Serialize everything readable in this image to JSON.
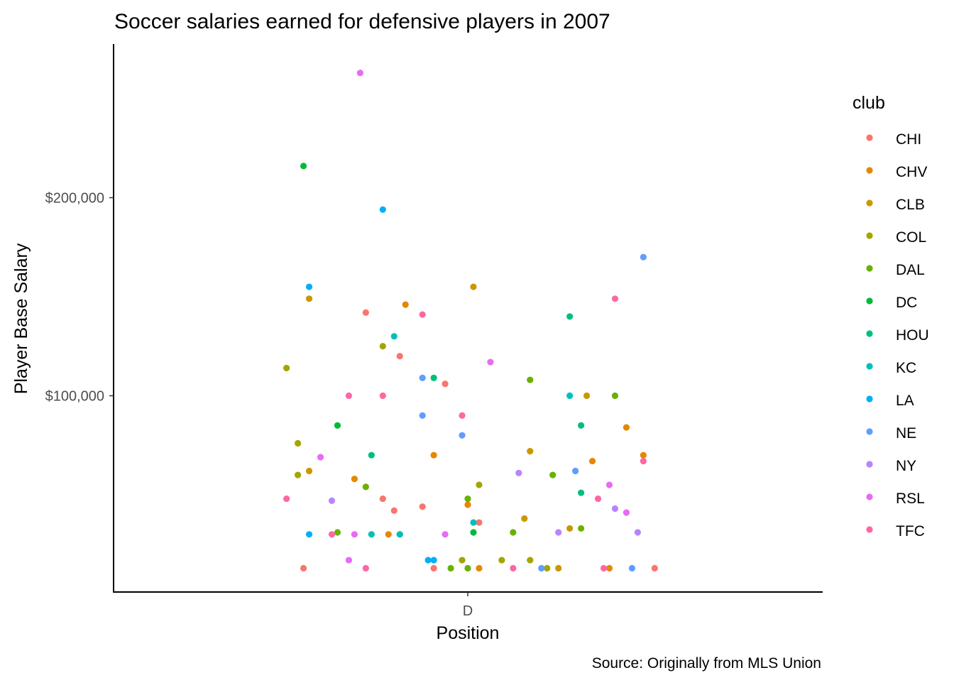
{
  "chart_data": {
    "type": "scatter",
    "title": "Soccer salaries earned for defensive players in 2007",
    "caption": "Source: Originally from MLS Union",
    "xlabel": "Position",
    "ylabel": "Player Base Salary",
    "x_categories": [
      "D"
    ],
    "y_ticks": [
      {
        "value": 100000,
        "label": "$100,000"
      },
      {
        "value": 200000,
        "label": "$200,000"
      }
    ],
    "ylim": [
      -10000,
      265000
    ],
    "jitter_range": [
      -0.5,
      0.5
    ],
    "grid": false,
    "legend": {
      "title": "club",
      "position": "right"
    },
    "series": [
      {
        "name": "CHI",
        "color": "#F8766D",
        "points": [
          {
            "x": "D",
            "j": -0.29,
            "y": 12900
          },
          {
            "x": "D",
            "j": -0.18,
            "y": 142000
          },
          {
            "x": "D",
            "j": -0.15,
            "y": 48000
          },
          {
            "x": "D",
            "j": -0.13,
            "y": 42000
          },
          {
            "x": "D",
            "j": -0.12,
            "y": 120000
          },
          {
            "x": "D",
            "j": -0.08,
            "y": 44000
          },
          {
            "x": "D",
            "j": -0.06,
            "y": 12900
          },
          {
            "x": "D",
            "j": -0.04,
            "y": 106000
          },
          {
            "x": "D",
            "j": 0.02,
            "y": 36000
          },
          {
            "x": "D",
            "j": 0.33,
            "y": 12900
          }
        ]
      },
      {
        "name": "CHV",
        "color": "#E58700",
        "points": [
          {
            "x": "D",
            "j": -0.2,
            "y": 58000
          },
          {
            "x": "D",
            "j": -0.14,
            "y": 30000
          },
          {
            "x": "D",
            "j": -0.11,
            "y": 146000
          },
          {
            "x": "D",
            "j": -0.06,
            "y": 70000
          },
          {
            "x": "D",
            "j": 0.0,
            "y": 45000
          },
          {
            "x": "D",
            "j": 0.02,
            "y": 12900
          },
          {
            "x": "D",
            "j": 0.22,
            "y": 67000
          },
          {
            "x": "D",
            "j": 0.25,
            "y": 12900
          },
          {
            "x": "D",
            "j": 0.28,
            "y": 84000
          },
          {
            "x": "D",
            "j": 0.31,
            "y": 70000
          }
        ]
      },
      {
        "name": "CLB",
        "color": "#C99800",
        "points": [
          {
            "x": "D",
            "j": -0.28,
            "y": 149000
          },
          {
            "x": "D",
            "j": -0.28,
            "y": 62000
          },
          {
            "x": "D",
            "j": 0.01,
            "y": 155000
          },
          {
            "x": "D",
            "j": 0.1,
            "y": 38000
          },
          {
            "x": "D",
            "j": 0.11,
            "y": 72000
          },
          {
            "x": "D",
            "j": 0.16,
            "y": 12900
          },
          {
            "x": "D",
            "j": 0.18,
            "y": 33000
          },
          {
            "x": "D",
            "j": 0.21,
            "y": 100000
          }
        ]
      },
      {
        "name": "COL",
        "color": "#A3A500",
        "points": [
          {
            "x": "D",
            "j": -0.32,
            "y": 114000
          },
          {
            "x": "D",
            "j": -0.3,
            "y": 76000
          },
          {
            "x": "D",
            "j": -0.3,
            "y": 60000
          },
          {
            "x": "D",
            "j": -0.15,
            "y": 125000
          },
          {
            "x": "D",
            "j": -0.01,
            "y": 17000
          },
          {
            "x": "D",
            "j": 0.02,
            "y": 55000
          },
          {
            "x": "D",
            "j": 0.06,
            "y": 17000
          },
          {
            "x": "D",
            "j": 0.11,
            "y": 17000
          },
          {
            "x": "D",
            "j": 0.14,
            "y": 12900
          }
        ]
      },
      {
        "name": "DAL",
        "color": "#6BB100",
        "points": [
          {
            "x": "D",
            "j": -0.23,
            "y": 31000
          },
          {
            "x": "D",
            "j": -0.18,
            "y": 54000
          },
          {
            "x": "D",
            "j": -0.03,
            "y": 12900
          },
          {
            "x": "D",
            "j": 0.0,
            "y": 12900
          },
          {
            "x": "D",
            "j": 0.0,
            "y": 48000
          },
          {
            "x": "D",
            "j": 0.08,
            "y": 31000
          },
          {
            "x": "D",
            "j": 0.11,
            "y": 108000
          },
          {
            "x": "D",
            "j": 0.15,
            "y": 60000
          },
          {
            "x": "D",
            "j": 0.2,
            "y": 33000
          },
          {
            "x": "D",
            "j": 0.26,
            "y": 100000
          }
        ]
      },
      {
        "name": "DC",
        "color": "#00BA38",
        "points": [
          {
            "x": "D",
            "j": -0.29,
            "y": 216000
          },
          {
            "x": "D",
            "j": -0.23,
            "y": 85000
          },
          {
            "x": "D",
            "j": -0.12,
            "y": 30000
          },
          {
            "x": "D",
            "j": 0.01,
            "y": 31000
          }
        ]
      },
      {
        "name": "HOU",
        "color": "#00BF7D",
        "points": [
          {
            "x": "D",
            "j": -0.17,
            "y": 70000
          },
          {
            "x": "D",
            "j": -0.06,
            "y": 109000
          },
          {
            "x": "D",
            "j": 0.18,
            "y": 140000
          },
          {
            "x": "D",
            "j": 0.2,
            "y": 51000
          },
          {
            "x": "D",
            "j": 0.2,
            "y": 85000
          }
        ]
      },
      {
        "name": "KC",
        "color": "#00C0B8",
        "points": [
          {
            "x": "D",
            "j": -0.17,
            "y": 30000
          },
          {
            "x": "D",
            "j": -0.13,
            "y": 130000
          },
          {
            "x": "D",
            "j": -0.12,
            "y": 30000
          },
          {
            "x": "D",
            "j": 0.01,
            "y": 36000
          },
          {
            "x": "D",
            "j": 0.18,
            "y": 100000
          }
        ]
      },
      {
        "name": "LA",
        "color": "#00B0F6",
        "points": [
          {
            "x": "D",
            "j": -0.28,
            "y": 155000
          },
          {
            "x": "D",
            "j": -0.28,
            "y": 30000
          },
          {
            "x": "D",
            "j": -0.15,
            "y": 194000
          },
          {
            "x": "D",
            "j": -0.07,
            "y": 17000
          },
          {
            "x": "D",
            "j": -0.06,
            "y": 17000
          }
        ]
      },
      {
        "name": "NE",
        "color": "#619CFF",
        "points": [
          {
            "x": "D",
            "j": -0.08,
            "y": 109000
          },
          {
            "x": "D",
            "j": -0.08,
            "y": 90000
          },
          {
            "x": "D",
            "j": -0.01,
            "y": 80000
          },
          {
            "x": "D",
            "j": 0.13,
            "y": 12900
          },
          {
            "x": "D",
            "j": 0.19,
            "y": 62000
          },
          {
            "x": "D",
            "j": 0.29,
            "y": 12900
          },
          {
            "x": "D",
            "j": 0.31,
            "y": 170000
          }
        ]
      },
      {
        "name": "NY",
        "color": "#B983FF",
        "points": [
          {
            "x": "D",
            "j": -0.24,
            "y": 47000
          },
          {
            "x": "D",
            "j": 0.09,
            "y": 61000
          },
          {
            "x": "D",
            "j": 0.16,
            "y": 31000
          },
          {
            "x": "D",
            "j": 0.26,
            "y": 43000
          },
          {
            "x": "D",
            "j": 0.3,
            "y": 31000
          }
        ]
      },
      {
        "name": "RSL",
        "color": "#E76BF3",
        "points": [
          {
            "x": "D",
            "j": -0.26,
            "y": 69000
          },
          {
            "x": "D",
            "j": -0.21,
            "y": 17000
          },
          {
            "x": "D",
            "j": -0.2,
            "y": 30000
          },
          {
            "x": "D",
            "j": -0.19,
            "y": 263000
          },
          {
            "x": "D",
            "j": -0.04,
            "y": 30000
          },
          {
            "x": "D",
            "j": 0.04,
            "y": 117000
          },
          {
            "x": "D",
            "j": 0.25,
            "y": 55000
          },
          {
            "x": "D",
            "j": 0.28,
            "y": 41000
          }
        ]
      },
      {
        "name": "TFC",
        "color": "#FF67A4",
        "points": [
          {
            "x": "D",
            "j": -0.32,
            "y": 48000
          },
          {
            "x": "D",
            "j": -0.24,
            "y": 30000
          },
          {
            "x": "D",
            "j": -0.21,
            "y": 100000
          },
          {
            "x": "D",
            "j": -0.18,
            "y": 12900
          },
          {
            "x": "D",
            "j": -0.15,
            "y": 100000
          },
          {
            "x": "D",
            "j": -0.08,
            "y": 141000
          },
          {
            "x": "D",
            "j": -0.01,
            "y": 90000
          },
          {
            "x": "D",
            "j": 0.08,
            "y": 12900
          },
          {
            "x": "D",
            "j": 0.23,
            "y": 48000
          },
          {
            "x": "D",
            "j": 0.24,
            "y": 12900
          },
          {
            "x": "D",
            "j": 0.26,
            "y": 149000
          },
          {
            "x": "D",
            "j": 0.31,
            "y": 67000
          }
        ]
      }
    ]
  }
}
